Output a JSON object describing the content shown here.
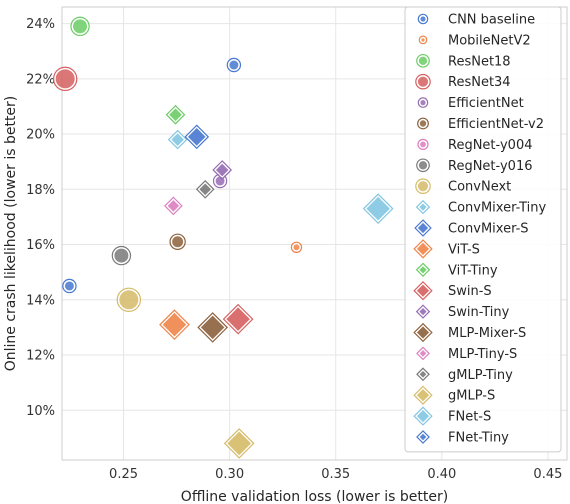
{
  "chart_data": {
    "type": "scatter",
    "xlabel": "Offline validation loss (lower is better)",
    "ylabel": "Online crash likelihood (lower is better)",
    "xlim": [
      0.221,
      0.459
    ],
    "ylim": [
      8.2,
      24.6
    ],
    "xticks": [
      0.25,
      0.3,
      0.35,
      0.4,
      0.45
    ],
    "xtick_labels": [
      "0.25",
      "0.30",
      "0.35",
      "0.40",
      "0.45"
    ],
    "yticks": [
      10,
      12,
      14,
      16,
      18,
      20,
      22,
      24
    ],
    "ytick_labels": [
      "10%",
      "12%",
      "14%",
      "16%",
      "18%",
      "20%",
      "22%",
      "24%"
    ],
    "grid": true,
    "legend_position": "right",
    "series": [
      {
        "name": "CNN baseline",
        "marker": "circle",
        "size": 10,
        "color": "#4878d0",
        "points": [
          [
            0.2245,
            14.5
          ],
          [
            0.302,
            22.5
          ]
        ]
      },
      {
        "name": "MobileNetV2",
        "marker": "circle",
        "size": 7,
        "color": "#ee854a",
        "points": [
          [
            0.3315,
            15.9
          ]
        ]
      },
      {
        "name": "ResNet18",
        "marker": "circle",
        "size": 15,
        "color": "#6acc64",
        "points": [
          [
            0.2295,
            23.9
          ]
        ]
      },
      {
        "name": "ResNet34",
        "marker": "circle",
        "size": 20,
        "color": "#d65f5f",
        "points": [
          [
            0.2225,
            22.0
          ]
        ]
      },
      {
        "name": "EfficientNet",
        "marker": "circle",
        "size": 10,
        "color": "#956cb4",
        "points": [
          [
            0.2955,
            18.3
          ]
        ]
      },
      {
        "name": "EfficientNet-v2",
        "marker": "circle",
        "size": 12,
        "color": "#8c613c",
        "points": [
          [
            0.2755,
            16.1
          ]
        ]
      },
      {
        "name": "RegNet-y004",
        "marker": "circle",
        "size": 11,
        "color": "#dc7ec0",
        "points": []
      },
      {
        "name": "RegNet-y016",
        "marker": "circle",
        "size": 15,
        "color": "#797979",
        "points": [
          [
            0.249,
            15.6
          ]
        ]
      },
      {
        "name": "ConvNext",
        "marker": "circle",
        "size": 20,
        "color": "#d5bb67",
        "points": [
          [
            0.2525,
            14.0
          ]
        ]
      },
      {
        "name": "ConvMixer-Tiny",
        "marker": "diamond",
        "size": 14,
        "color": "#82c6e2",
        "points": [
          [
            0.2755,
            19.8
          ]
        ]
      },
      {
        "name": "ConvMixer-S",
        "marker": "diamond",
        "size": 19,
        "color": "#4878d0",
        "points": [
          [
            0.2845,
            19.9
          ]
        ]
      },
      {
        "name": "ViT-S",
        "marker": "diamond",
        "size": 25,
        "color": "#ee854a",
        "points": [
          [
            0.274,
            13.1
          ]
        ]
      },
      {
        "name": "ViT-Tiny",
        "marker": "diamond",
        "size": 14,
        "color": "#6acc64",
        "points": [
          [
            0.2745,
            20.7
          ]
        ]
      },
      {
        "name": "Swin-S",
        "marker": "diamond",
        "size": 25,
        "color": "#d65f5f",
        "points": [
          [
            0.304,
            13.3
          ]
        ]
      },
      {
        "name": "Swin-Tiny",
        "marker": "diamond",
        "size": 14,
        "color": "#956cb4",
        "points": [
          [
            0.2965,
            18.7
          ]
        ]
      },
      {
        "name": "MLP-Mixer-S",
        "marker": "diamond",
        "size": 25,
        "color": "#8c613c",
        "points": [
          [
            0.292,
            13.0
          ]
        ]
      },
      {
        "name": "MLP-Tiny-S",
        "marker": "diamond",
        "size": 13,
        "color": "#dc7ec0",
        "points": [
          [
            0.2735,
            17.4
          ]
        ]
      },
      {
        "name": "gMLP-Tiny",
        "marker": "diamond",
        "size": 13,
        "color": "#797979",
        "points": [
          [
            0.2885,
            18.0
          ]
        ]
      },
      {
        "name": "gMLP-S",
        "marker": "diamond",
        "size": 25,
        "color": "#d5bb67",
        "points": [
          [
            0.3045,
            8.8
          ]
        ]
      },
      {
        "name": "FNet-S",
        "marker": "diamond",
        "size": 25,
        "color": "#82c6e2",
        "points": [
          [
            0.37,
            17.3
          ]
        ]
      },
      {
        "name": "FNet-Tiny",
        "marker": "diamond",
        "size": 13,
        "color": "#4878d0",
        "points": []
      }
    ]
  }
}
